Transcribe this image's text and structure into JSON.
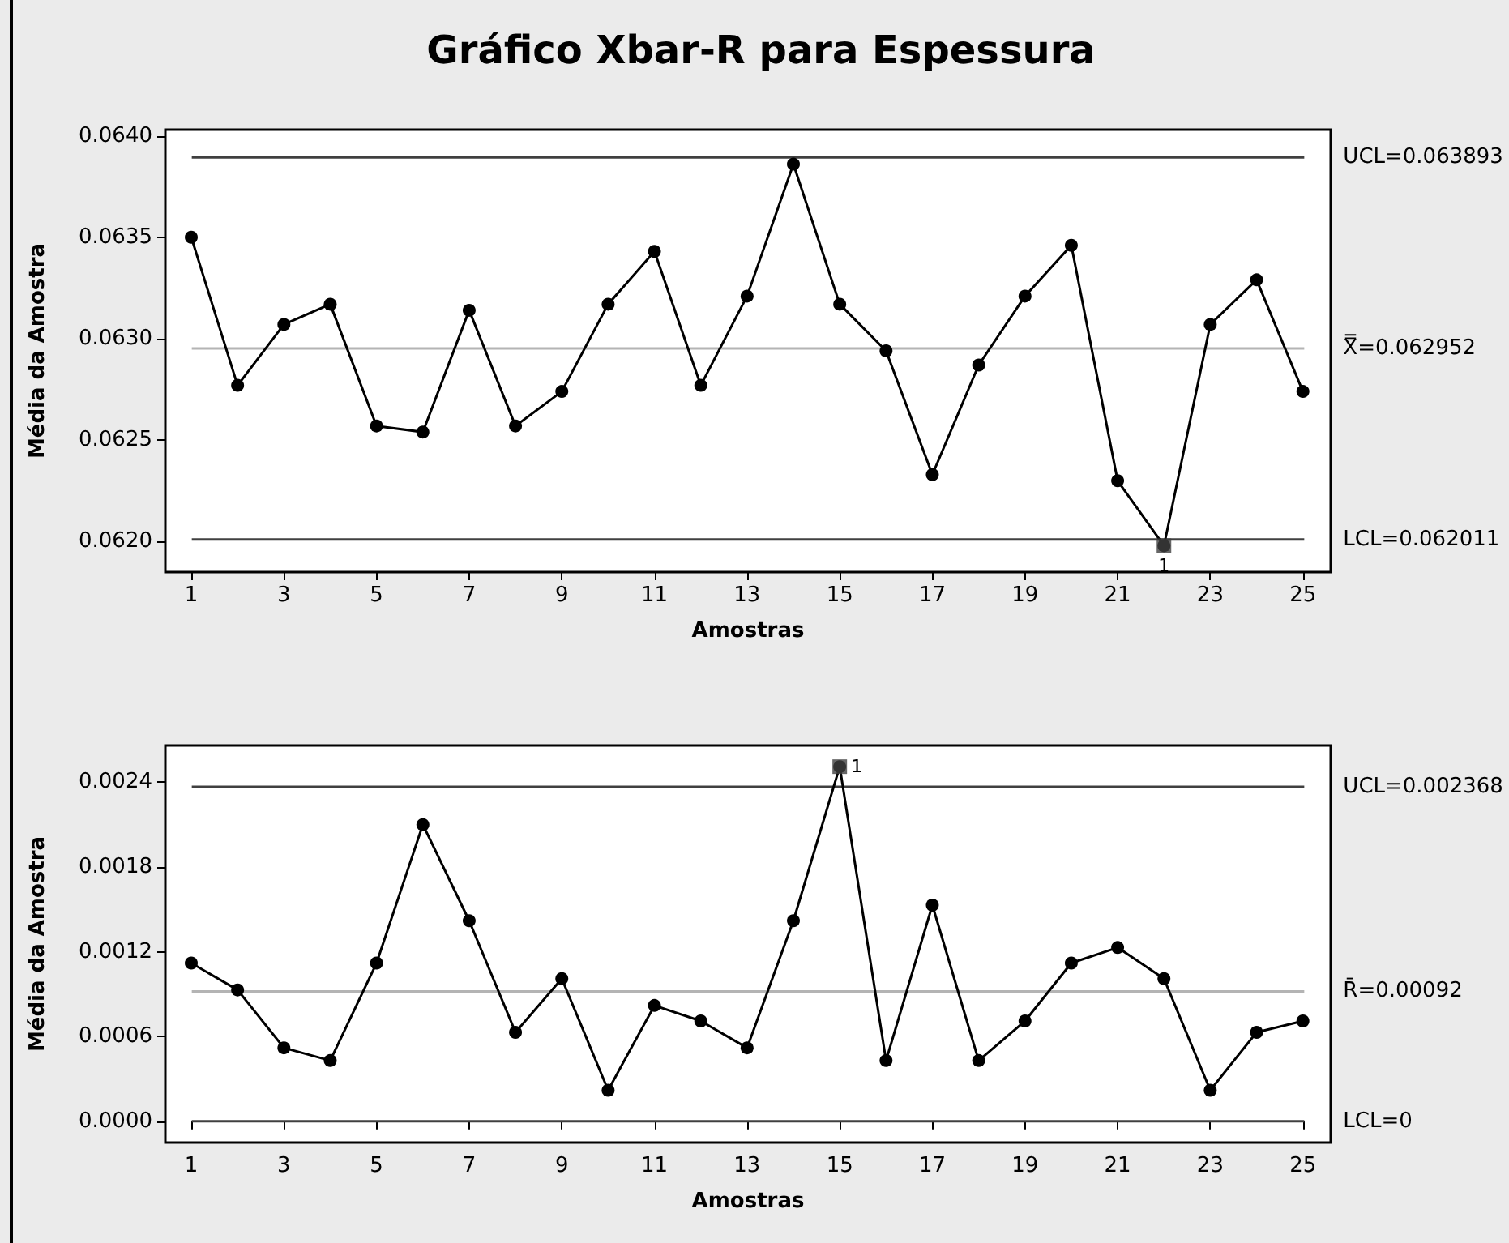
{
  "chart_data": [
    {
      "type": "line",
      "title": "Gráfico Xbar-R para Espessura",
      "xlabel": "Amostras",
      "ylabel": "Média da Amostra",
      "x": [
        1,
        2,
        3,
        4,
        5,
        6,
        7,
        8,
        9,
        10,
        11,
        12,
        13,
        14,
        15,
        16,
        17,
        18,
        19,
        20,
        21,
        22,
        23,
        24,
        25
      ],
      "series": [
        {
          "color": "#000000",
          "values": [
            0.0635,
            0.06277,
            0.06307,
            0.06317,
            0.06257,
            0.06254,
            0.06314,
            0.06257,
            0.06274,
            0.06317,
            0.06343,
            0.06277,
            0.06321,
            0.06386,
            0.06317,
            0.06294,
            0.06233,
            0.06287,
            0.06321,
            0.06346,
            0.0623,
            0.06198,
            0.06307,
            0.06329,
            0.06274
          ]
        },
        {
          "type": "scatter",
          "marker": "square",
          "color": "#404040",
          "x": [
            22
          ],
          "values": [
            0.06198
          ]
        }
      ],
      "marker": "circle",
      "line_style": "solid",
      "grid": false,
      "xlim": [
        0.44,
        25.6
      ],
      "xticks": [
        1,
        3,
        5,
        7,
        9,
        11,
        13,
        15,
        17,
        19,
        21,
        23,
        25
      ],
      "ylim": [
        0.06185,
        0.06403
      ],
      "yticks": [
        {
          "value": 0.062,
          "label": "0.0620"
        },
        {
          "value": 0.0625,
          "label": "0.0625"
        },
        {
          "value": 0.063,
          "label": "0.0630"
        },
        {
          "value": 0.0635,
          "label": "0.0635"
        },
        {
          "value": 0.064,
          "label": "0.0640"
        }
      ],
      "ref_lines": [
        {
          "axis": "y",
          "value": 0.063893,
          "label": "UCL=0.063893",
          "color": "#404040",
          "line_style": "solid"
        },
        {
          "axis": "y",
          "value": 0.062952,
          "label": "X̿=0.062952",
          "color": "#b4b4b4",
          "line_style": "solid"
        },
        {
          "axis": "y",
          "value": 0.062011,
          "label": "LCL=0.062011",
          "color": "#404040",
          "line_style": "solid"
        }
      ],
      "annotations": [
        {
          "text": "1",
          "x": 22,
          "y": 0.06198
        }
      ]
    },
    {
      "type": "line",
      "xlabel": "Amostras",
      "ylabel": "Média da Amostra",
      "x": [
        1,
        2,
        3,
        4,
        5,
        6,
        7,
        8,
        9,
        10,
        11,
        12,
        13,
        14,
        15,
        16,
        17,
        18,
        19,
        20,
        21,
        22,
        23,
        24,
        25
      ],
      "series": [
        {
          "color": "#000000",
          "values": [
            0.00112,
            0.00093,
            0.00052,
            0.00043,
            0.00112,
            0.0021,
            0.00142,
            0.00063,
            0.00101,
            0.00022,
            0.00082,
            0.00071,
            0.00052,
            0.00142,
            0.00251,
            0.00043,
            0.00153,
            0.00043,
            0.00071,
            0.00112,
            0.00123,
            0.00101,
            0.00022,
            0.00063,
            0.00071
          ]
        },
        {
          "type": "scatter",
          "marker": "square",
          "color": "#404040",
          "x": [
            15
          ],
          "values": [
            0.00251
          ]
        }
      ],
      "marker": "circle",
      "line_style": "solid",
      "grid": false,
      "xlim": [
        0.44,
        25.6
      ],
      "xticks": [
        1,
        3,
        5,
        7,
        9,
        11,
        13,
        15,
        17,
        19,
        21,
        23,
        25
      ],
      "ylim": [
        -0.00015,
        0.00266
      ],
      "yticks": [
        {
          "value": 0,
          "label": "0.0000"
        },
        {
          "value": 0.0006,
          "label": "0.0006"
        },
        {
          "value": 0.0012,
          "label": "0.0012"
        },
        {
          "value": 0.0018,
          "label": "0.0018"
        },
        {
          "value": 0.0024,
          "label": "0.0024"
        }
      ],
      "ref_lines": [
        {
          "axis": "y",
          "value": 0.002368,
          "label": "UCL=0.002368",
          "color": "#404040",
          "line_style": "solid"
        },
        {
          "axis": "y",
          "value": 0.00092,
          "label": "R̄=0.00092",
          "color": "#b4b4b4",
          "line_style": "solid"
        },
        {
          "axis": "y",
          "value": 0,
          "label": "LCL=0",
          "color": "#404040",
          "line_style": "solid"
        }
      ],
      "annotations": [
        {
          "text": "1",
          "x": 15,
          "y": 0.00251
        }
      ]
    }
  ]
}
